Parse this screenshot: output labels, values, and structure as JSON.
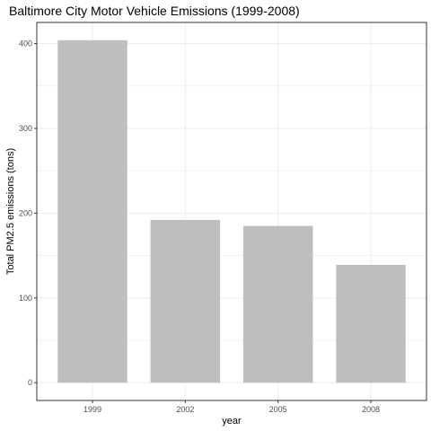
{
  "chart_data": {
    "type": "bar",
    "title": "Baltimore City Motor Vehicle Emissions (1999-2008)",
    "xlabel": "year",
    "ylabel": "Total PM2.5 emissions (tons)",
    "categories": [
      "1999",
      "2002",
      "2005",
      "2008"
    ],
    "values": [
      404,
      192,
      185,
      139
    ],
    "ylim": [
      -21,
      425
    ],
    "yticks": [
      0,
      100,
      200,
      300,
      400
    ],
    "grid": true,
    "bar_color": "#bebebe",
    "grid_color": "#ebebeb",
    "panel_border_color": "#333333"
  }
}
